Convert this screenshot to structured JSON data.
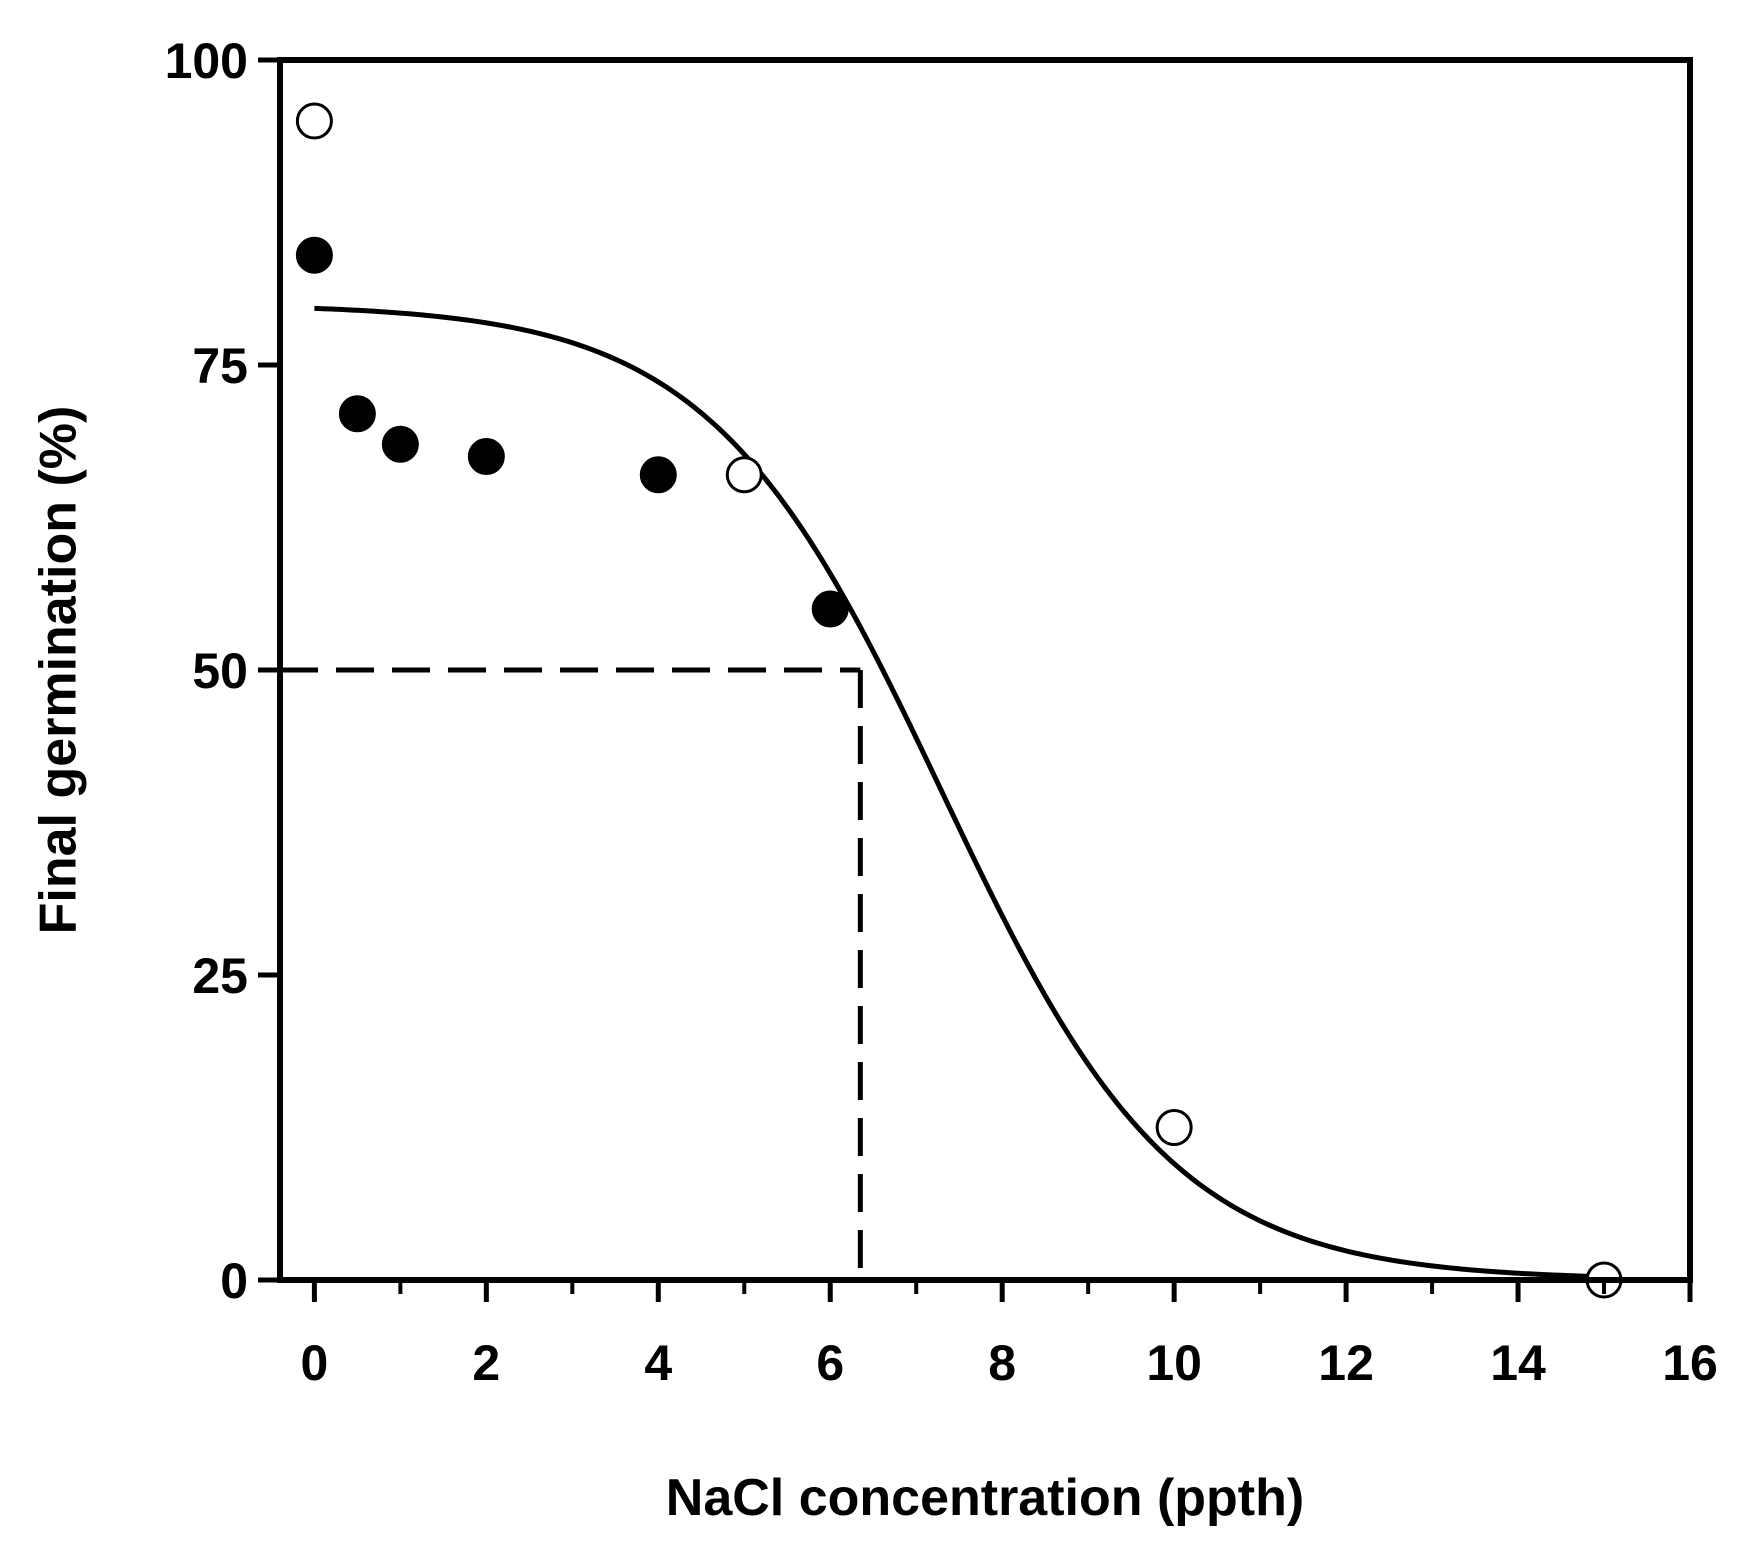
{
  "chart_data": {
    "type": "scatter",
    "title": "",
    "xlabel": "NaCl concentration (ppth)",
    "ylabel": "Final germination (%)",
    "xlim": [
      -0.4,
      16
    ],
    "ylim": [
      0,
      100
    ],
    "x_ticks": [
      0,
      2,
      4,
      6,
      8,
      10,
      12,
      14,
      16
    ],
    "x_minor_ticks": [
      1,
      3,
      5,
      7,
      9,
      11,
      13,
      15
    ],
    "y_ticks": [
      0,
      25,
      50,
      75,
      100
    ],
    "grid": false,
    "series": [
      {
        "name": "filled",
        "marker": "filled-circle",
        "color": "#000000",
        "points": [
          {
            "x": 0,
            "y": 84
          },
          {
            "x": 0.5,
            "y": 71
          },
          {
            "x": 1,
            "y": 68.5
          },
          {
            "x": 2,
            "y": 67.5
          },
          {
            "x": 4,
            "y": 66
          },
          {
            "x": 6,
            "y": 55
          }
        ]
      },
      {
        "name": "open",
        "marker": "open-circle",
        "color": "#000000",
        "points": [
          {
            "x": 0,
            "y": 95
          },
          {
            "x": 5,
            "y": 66
          },
          {
            "x": 10,
            "y": 12.5
          },
          {
            "x": 15,
            "y": 0
          }
        ]
      }
    ],
    "fit_curve": {
      "type": "sigmoid",
      "max": 80,
      "x50": 7.3,
      "slope": 1.35,
      "x_range": [
        0,
        15
      ]
    },
    "reference_lines": {
      "y_value": 50,
      "x_value": 6.35,
      "style": "dashed"
    }
  }
}
